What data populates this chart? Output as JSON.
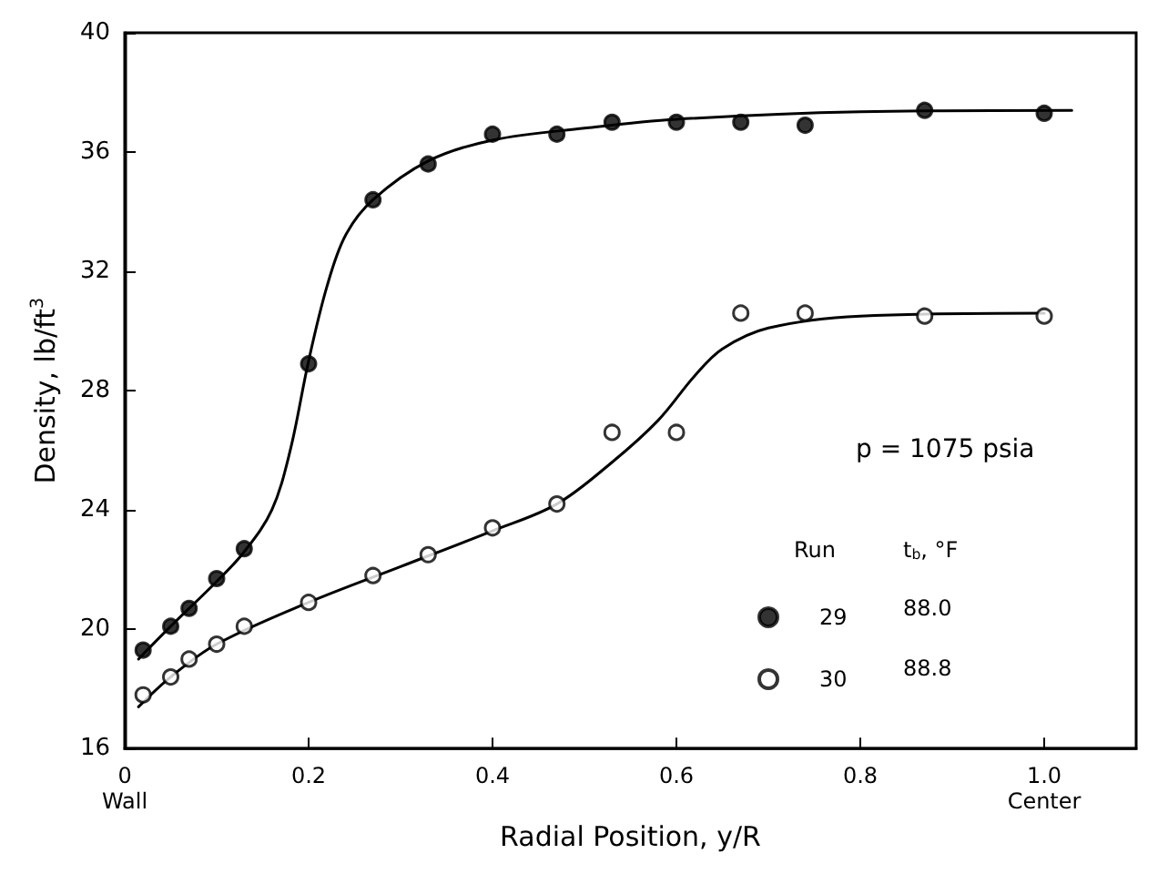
{
  "chart_data": {
    "type": "scatter",
    "xlabel": "Radial Position, y/R",
    "ylabel": "Density, lb/ft$^{3}$",
    "annotations": [
      "p = 1075 psia",
      "Run",
      "t$_{b}$, °F",
      "88.0",
      "88.8"
    ],
    "series": [
      {
        "name": "29",
        "marker": "circle",
        "color": "#000000",
        "x": [
          0.02,
          0.05,
          0.07,
          0.1,
          0.13,
          0.2,
          0.27,
          0.33,
          0.4,
          0.47,
          0.53,
          0.6,
          0.67,
          0.74,
          0.87,
          1.0
        ],
        "values": [
          19.3,
          20.1,
          20.7,
          21.7,
          22.7,
          28.9,
          34.4,
          35.6,
          36.6,
          36.6,
          37.0,
          37.0,
          37.0,
          36.9,
          37.4,
          37.3
        ]
      },
      {
        "name": "30",
        "marker": "circle",
        "color": "#ffffff",
        "x": [
          0.02,
          0.05,
          0.07,
          0.1,
          0.13,
          0.2,
          0.27,
          0.33,
          0.4,
          0.47,
          0.53,
          0.6,
          0.67,
          0.74,
          0.87,
          1.0
        ],
        "values": [
          17.8,
          18.4,
          19.0,
          19.5,
          20.1,
          20.9,
          21.8,
          22.5,
          23.4,
          24.2,
          26.6,
          26.6,
          30.6,
          30.6,
          30.5,
          30.5
        ]
      },
      {
        "type": "line",
        "marker": "none",
        "color": "#000000",
        "x": [
          0.015,
          0.05,
          0.1,
          0.13,
          0.16,
          0.18,
          0.2,
          0.22,
          0.24,
          0.27,
          0.33,
          0.4,
          0.5,
          0.6,
          0.8,
          1.03
        ],
        "values": [
          19.0,
          20.1,
          21.6,
          22.6,
          24.0,
          26.0,
          29.0,
          31.5,
          33.2,
          34.4,
          35.7,
          36.4,
          36.8,
          37.1,
          37.35,
          37.4
        ]
      },
      {
        "type": "line",
        "marker": "none",
        "color": "#000000",
        "x": [
          0.015,
          0.05,
          0.1,
          0.2,
          0.3,
          0.4,
          0.47,
          0.53,
          0.58,
          0.62,
          0.65,
          0.7,
          0.8,
          1.0
        ],
        "values": [
          17.4,
          18.4,
          19.5,
          20.9,
          22.1,
          23.3,
          24.2,
          25.6,
          27.0,
          28.5,
          29.4,
          30.1,
          30.5,
          30.6
        ]
      }
    ],
    "xlim": [
      0,
      1.1
    ],
    "xticks": [
      {
        "value": 0,
        "label": "0\nWall"
      },
      0.2,
      0.4,
      0.6,
      {
        "value": 0.8,
        "label": "0.8"
      },
      {
        "value": 1.0,
        "label": "1.0\nCenter"
      }
    ],
    "ylim": [
      16,
      40
    ],
    "yticks": [
      16,
      20,
      24,
      28,
      32,
      36,
      40
    ],
    "grid": false,
    "legend": "right",
    "line_style": "solid"
  }
}
